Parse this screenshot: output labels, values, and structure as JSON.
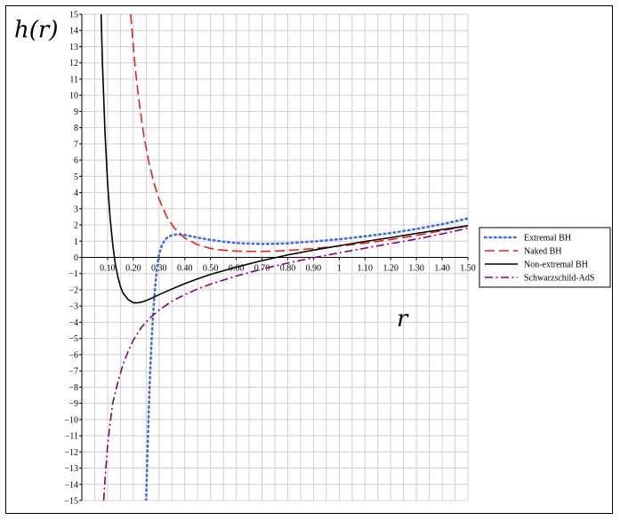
{
  "chart_data": {
    "type": "line",
    "title": "",
    "xlabel": "r",
    "ylabel": "h(r)",
    "xlim": [
      0,
      1.5
    ],
    "ylim": [
      -15,
      15
    ],
    "grid": true,
    "legend_position": "right",
    "x_ticks": [
      "0.10",
      "0.20",
      "0.30",
      "0.40",
      "0.50",
      "0.60",
      "0.70",
      "0.80",
      "0.90",
      "1",
      "1.10",
      "1.20",
      "1.30",
      "1.40",
      "1.50"
    ],
    "y_ticks": [
      "15",
      "14",
      "13",
      "12",
      "11",
      "10",
      "9",
      "8",
      "7",
      "6",
      "5",
      "4",
      "3",
      "2",
      "1",
      "0",
      "−1",
      "−2",
      "−3",
      "−4",
      "−5",
      "−6",
      "−7",
      "−8",
      "−9",
      "−10",
      "−11",
      "−12",
      "−13",
      "−14",
      "−15"
    ],
    "series": [
      {
        "name": "Extremal BH",
        "color": "#4169e1",
        "style": "dotted",
        "x": [
          0.25,
          0.255,
          0.26,
          0.265,
          0.27,
          0.275,
          0.28,
          0.285,
          0.29,
          0.295,
          0.3,
          0.31,
          0.32,
          0.33,
          0.35,
          0.37,
          0.4,
          0.45,
          0.5,
          0.55,
          0.6,
          0.65,
          0.7,
          0.75,
          0.8,
          0.85,
          0.9,
          1.0,
          1.1,
          1.2,
          1.3,
          1.4,
          1.5
        ],
        "y": [
          -15,
          -12,
          -9.5,
          -7.2,
          -5.5,
          -4.0,
          -2.8,
          -1.8,
          -1.0,
          -0.3,
          0.2,
          0.7,
          1.0,
          1.2,
          1.38,
          1.42,
          1.38,
          1.22,
          1.08,
          0.97,
          0.89,
          0.85,
          0.83,
          0.84,
          0.87,
          0.93,
          0.98,
          1.12,
          1.3,
          1.5,
          1.75,
          2.05,
          2.4
        ]
      },
      {
        "name": "Naked BH",
        "color": "#e8201a",
        "style": "dashed",
        "x": [
          0.19,
          0.2,
          0.21,
          0.22,
          0.24,
          0.26,
          0.28,
          0.3,
          0.33,
          0.36,
          0.4,
          0.45,
          0.5,
          0.55,
          0.6,
          0.65,
          0.7,
          0.75,
          0.8,
          0.85,
          0.9,
          1.0,
          1.1,
          1.2,
          1.3,
          1.4,
          1.5
        ],
        "y": [
          15,
          13.0,
          11.3,
          9.9,
          7.6,
          5.9,
          4.6,
          3.6,
          2.5,
          1.8,
          1.2,
          0.78,
          0.55,
          0.44,
          0.39,
          0.37,
          0.37,
          0.39,
          0.43,
          0.48,
          0.55,
          0.7,
          0.88,
          1.1,
          1.36,
          1.65,
          1.95
        ]
      },
      {
        "name": "Non-extremal BH",
        "color": "#000000",
        "style": "solid",
        "x": [
          0.075,
          0.08,
          0.09,
          0.1,
          0.11,
          0.12,
          0.13,
          0.14,
          0.15,
          0.16,
          0.18,
          0.2,
          0.22,
          0.24,
          0.26,
          0.3,
          0.35,
          0.4,
          0.45,
          0.5,
          0.6,
          0.7,
          0.8,
          0.9,
          1.0,
          1.1,
          1.2,
          1.3,
          1.4,
          1.5
        ],
        "y": [
          15,
          12.0,
          7.7,
          4.6,
          2.4,
          0.8,
          -0.4,
          -1.2,
          -1.8,
          -2.2,
          -2.6,
          -2.8,
          -2.8,
          -2.72,
          -2.6,
          -2.3,
          -1.95,
          -1.62,
          -1.32,
          -1.05,
          -0.6,
          -0.2,
          0.15,
          0.45,
          0.72,
          0.98,
          1.22,
          1.48,
          1.72,
          1.95
        ]
      },
      {
        "name": "Schwarzschild-AdS",
        "color": "#800080",
        "style": "dashdot",
        "x": [
          0.085,
          0.09,
          0.1,
          0.11,
          0.12,
          0.14,
          0.16,
          0.18,
          0.2,
          0.23,
          0.26,
          0.3,
          0.35,
          0.4,
          0.45,
          0.5,
          0.6,
          0.7,
          0.8,
          0.9,
          1.0,
          1.1,
          1.2,
          1.3,
          1.4,
          1.5
        ],
        "y": [
          -15,
          -13.7,
          -11.6,
          -10.2,
          -9.0,
          -7.7,
          -6.6,
          -5.8,
          -5.1,
          -4.35,
          -3.8,
          -3.25,
          -2.7,
          -2.3,
          -1.95,
          -1.65,
          -1.15,
          -0.72,
          -0.35,
          -0.02,
          0.28,
          0.57,
          0.85,
          1.13,
          1.45,
          1.8
        ]
      }
    ]
  }
}
